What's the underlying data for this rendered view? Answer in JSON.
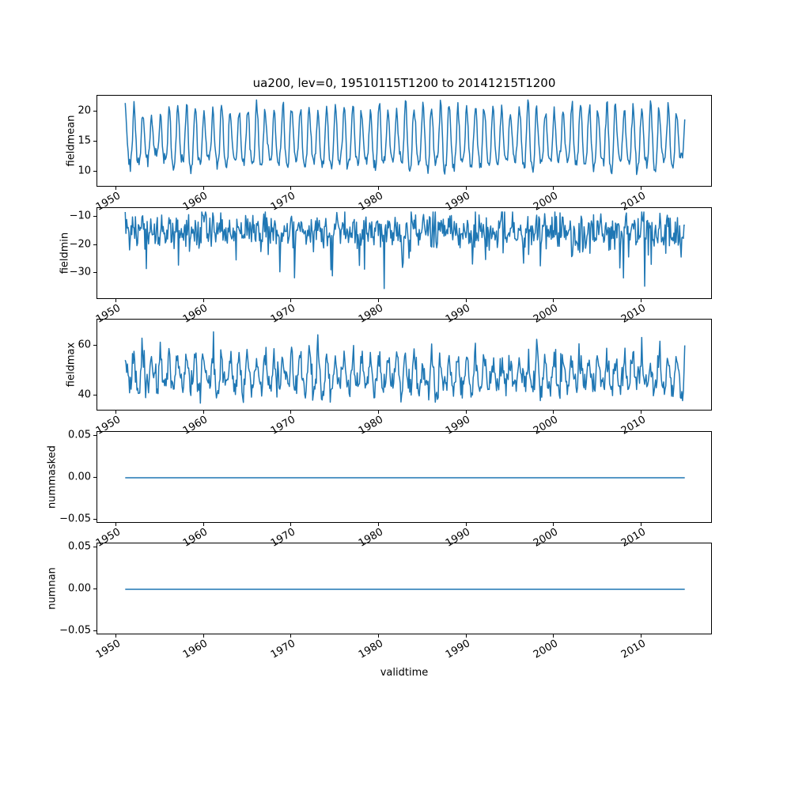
{
  "figure": {
    "title": "ua200, lev=0, 19510115T1200 to 20141215T1200",
    "xlabel": "validtime",
    "line_color": "#1f77b4",
    "background": "#ffffff",
    "xticks": [
      1950,
      1960,
      1970,
      1980,
      1990,
      2000,
      2010
    ],
    "xtick_labels": [
      "1950",
      "1960",
      "1970",
      "1980",
      "1990",
      "2000",
      "2010"
    ],
    "seed": 7
  },
  "chart_data": [
    {
      "type": "line",
      "name": "fieldmean",
      "ylabel": "fieldmean",
      "x_start": 1951.04,
      "x_end": 2014.96,
      "n_points": 768,
      "xlim": [
        1947.85,
        2018.15
      ],
      "ylim": [
        7.4,
        22.6
      ],
      "yticks": [
        10,
        15,
        20
      ],
      "ytick_labels": [
        "10",
        "15",
        "20"
      ],
      "series_spec": {
        "kind": "seasonal",
        "base": 15.1,
        "annual_amp": 4.6,
        "annual_amp_jitter": 0.8,
        "semiannual_amp": 0.9,
        "noise_sd": 0.55,
        "phase": 0.2,
        "clamp": [
          8.3,
          21.9
        ]
      }
    },
    {
      "type": "line",
      "name": "fieldmin",
      "ylabel": "fieldmin",
      "x_start": 1951.04,
      "x_end": 2014.96,
      "n_points": 768,
      "xlim": [
        1947.85,
        2018.15
      ],
      "ylim": [
        -39.5,
        -6.8
      ],
      "yticks": [
        -10,
        -20,
        -30
      ],
      "ytick_labels": [
        "−10",
        "−20",
        "−30"
      ],
      "series_spec": {
        "kind": "noisy",
        "base": -15.0,
        "seasonal_amp": 1.6,
        "phase": 0.3,
        "noise_sd": 3.0,
        "spike_prob": 0.05,
        "spike_min": 5,
        "spike_max": 14,
        "spike_sign": -1,
        "clamp": [
          -35.5,
          -8.2
        ]
      }
    },
    {
      "type": "line",
      "name": "fieldmax",
      "ylabel": "fieldmax",
      "x_start": 1951.04,
      "x_end": 2014.96,
      "n_points": 768,
      "xlim": [
        1947.85,
        2018.15
      ],
      "ylim": [
        33.5,
        70.5
      ],
      "yticks": [
        40,
        60
      ],
      "ytick_labels": [
        "40",
        "60"
      ],
      "series_spec": {
        "kind": "seasonal",
        "base": 48.0,
        "annual_amp": 6.0,
        "annual_amp_jitter": 1.6,
        "semiannual_amp": 1.2,
        "noise_sd": 2.6,
        "phase": 0.15,
        "spike_prob": 0.03,
        "spike_min": 4,
        "spike_max": 10,
        "spike_sign": 1,
        "clamp": [
          35.0,
          68.5
        ]
      }
    },
    {
      "type": "line",
      "name": "nummasked",
      "ylabel": "nummasked",
      "x_start": 1951.04,
      "x_end": 2014.96,
      "n_points": 2,
      "xlim": [
        1947.85,
        2018.15
      ],
      "ylim": [
        -0.055,
        0.055
      ],
      "yticks": [
        -0.05,
        0.0,
        0.05
      ],
      "ytick_labels": [
        "−0.05",
        "0.00",
        "0.05"
      ],
      "series_spec": {
        "kind": "constant",
        "value": 0
      }
    },
    {
      "type": "line",
      "name": "numnan",
      "ylabel": "numnan",
      "x_start": 1951.04,
      "x_end": 2014.96,
      "n_points": 2,
      "xlim": [
        1947.85,
        2018.15
      ],
      "ylim": [
        -0.055,
        0.055
      ],
      "yticks": [
        -0.05,
        0.0,
        0.05
      ],
      "ytick_labels": [
        "−0.05",
        "0.00",
        "0.05"
      ],
      "series_spec": {
        "kind": "constant",
        "value": 0
      }
    }
  ]
}
